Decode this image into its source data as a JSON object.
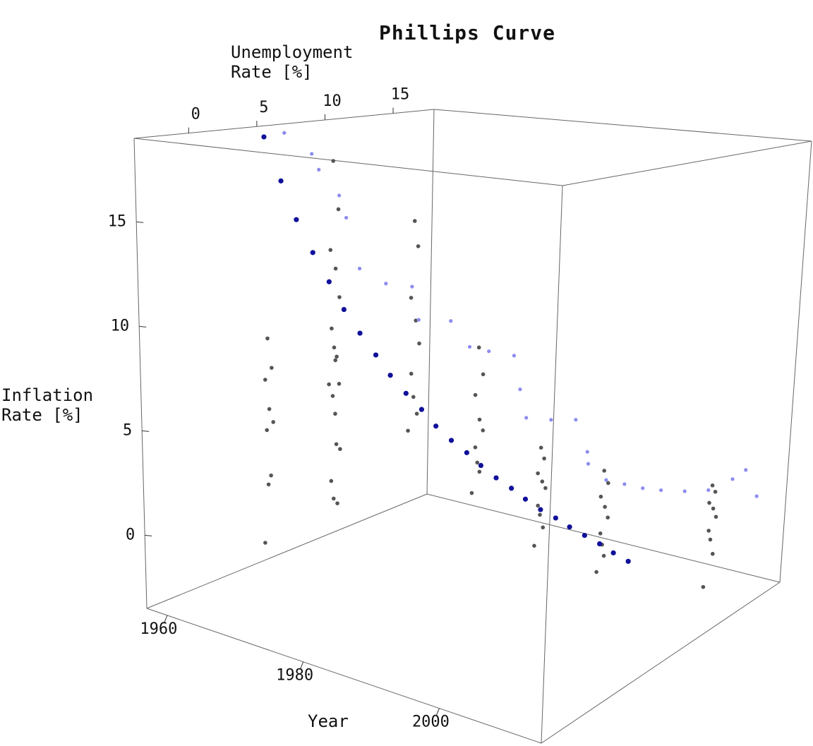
{
  "chart_data": {
    "type": "scatter3d",
    "title": "Phillips Curve",
    "xlabel": "Unemployment Rate [%]",
    "ylabel": "Year",
    "zlabel": "Inflation Rate [%]",
    "xlim": [
      -4,
      18
    ],
    "ylim": [
      1957,
      2015
    ],
    "zlim": [
      -3.5,
      19
    ],
    "xticks": [
      0,
      5,
      10,
      15
    ],
    "yticks": [
      1960,
      1980,
      2000
    ],
    "zticks": [
      0,
      5,
      10,
      15
    ],
    "series": [
      {
        "color": "#555555",
        "x": [
          2,
          2.3,
          1.8,
          2.1,
          2.4,
          1.9,
          2.2,
          2,
          1.7,
          3,
          3.3,
          2.8,
          3.1,
          3.4,
          2.9,
          3.2,
          3,
          2.7,
          6,
          6.4,
          5.8,
          6.2,
          6.5,
          5.9,
          6.1,
          6.3,
          5.7,
          7,
          7.3,
          6.8,
          7.2,
          7.5,
          6.9,
          7.1,
          7.4,
          6.7,
          8,
          8.4,
          7.8,
          8.2,
          8.5,
          7.9,
          8.1,
          8.3,
          7.7,
          9,
          9.3,
          8.8,
          9.2,
          9.5,
          8.9,
          9.1,
          9.4,
          8.7,
          10,
          10.4,
          9.8,
          10.2,
          10.5,
          9.9,
          10.1,
          10.3,
          9.7,
          14,
          14.3,
          13.8,
          14.2,
          14.5,
          13.9,
          14.1,
          14.4,
          13.7
        ],
        "y": [
          1964,
          1964,
          1964,
          1964,
          1964,
          1964,
          1964,
          1964,
          1964,
          1972,
          1972,
          1972,
          1972,
          1972,
          1972,
          1972,
          1972,
          1972,
          1966,
          1966,
          1966,
          1966,
          1966,
          1966,
          1966,
          1966,
          1966,
          1976,
          1976,
          1976,
          1976,
          1976,
          1976,
          1976,
          1976,
          1976,
          1984,
          1984,
          1984,
          1984,
          1984,
          1984,
          1984,
          1984,
          1984,
          1992,
          1992,
          1992,
          1992,
          1992,
          1992,
          1992,
          1992,
          1992,
          2000,
          2000,
          2000,
          2000,
          2000,
          2000,
          2000,
          2000,
          2000,
          2010,
          2010,
          2010,
          2010,
          2010,
          2010,
          2010,
          2010,
          2010
        ],
        "z": [
          9,
          7.5,
          7,
          5.5,
          4.8,
          4.5,
          2.2,
          1.8,
          -1,
          8.3,
          7.1,
          6.6,
          4.2,
          3.9,
          1.6,
          1.3,
          5.7,
          2.5,
          17.5,
          15,
          13,
          12,
          10.5,
          9,
          8,
          7.5,
          6.2,
          14.8,
          13.5,
          11,
          9.8,
          8.6,
          7.2,
          6,
          5.1,
          4.4,
          8.8,
          7.4,
          6.5,
          5.2,
          4.6,
          3.9,
          3.1,
          2.6,
          1.7,
          4.2,
          3.6,
          3,
          2.5,
          2.1,
          1.4,
          0.9,
          0.2,
          -0.5,
          3.4,
          2.7,
          2.2,
          1.6,
          1,
          0.4,
          -0.2,
          -0.8,
          -1.4,
          2.3,
          1.9,
          1.5,
          1.1,
          0.6,
          0.1,
          -0.4,
          -1.2,
          -2.6
        ]
      },
      {
        "color": "#8c8cf0",
        "x": [
          6.5,
          7.5,
          7,
          7.5,
          7,
          7,
          8,
          9,
          8.5,
          10,
          10.5,
          11,
          12,
          11.5,
          11,
          12,
          13,
          13,
          12,
          12.5,
          13,
          13.5,
          14,
          15,
          16,
          17,
          17,
          17
        ],
        "y": [
          1958,
          1960,
          1962,
          1964,
          1966,
          1968,
          1970,
          1972,
          1974,
          1976,
          1978,
          1980,
          1982,
          1984,
          1986,
          1988,
          1990,
          1992,
          1994,
          1996,
          1998,
          2000,
          2002,
          2004,
          2006,
          2008,
          2010,
          2012
        ],
        "z": [
          18.6,
          17.5,
          16.8,
          15.5,
          14.5,
          12,
          11.2,
          11,
          9.5,
          9.3,
          8,
          7.8,
          7.5,
          6,
          4.8,
          4.6,
          4.5,
          3,
          2.8,
          2,
          1.8,
          1.6,
          1.5,
          1.3,
          1.2,
          1.6,
          2.2,
          1
        ]
      },
      {
        "color": "#10109a",
        "x": [
          5,
          5.2,
          5.3,
          5.5,
          5.7,
          5.8,
          6,
          6.2,
          6.3,
          6.5,
          6.7,
          6.8,
          7,
          7.2,
          7.3,
          7.5,
          7.7,
          7.8,
          8,
          8.2,
          8.3,
          8.5,
          8.7,
          8.8,
          9
        ],
        "y": [
          1958,
          1960,
          1962,
          1964,
          1966,
          1968,
          1970,
          1972,
          1974,
          1976,
          1978,
          1980,
          1982,
          1984,
          1986,
          1988,
          1990,
          1992,
          1994,
          1996,
          1998,
          2000,
          2002,
          2004,
          2006
        ],
        "z": [
          18.5,
          16.3,
          14.4,
          12.8,
          11.4,
          10.1,
          9,
          8,
          7.1,
          6.3,
          5.6,
          4.9,
          4.3,
          3.8,
          3.3,
          2.8,
          2.4,
          2,
          1.6,
          1.3,
          1,
          0.7,
          0.4,
          0.1,
          -0.2
        ]
      }
    ]
  }
}
